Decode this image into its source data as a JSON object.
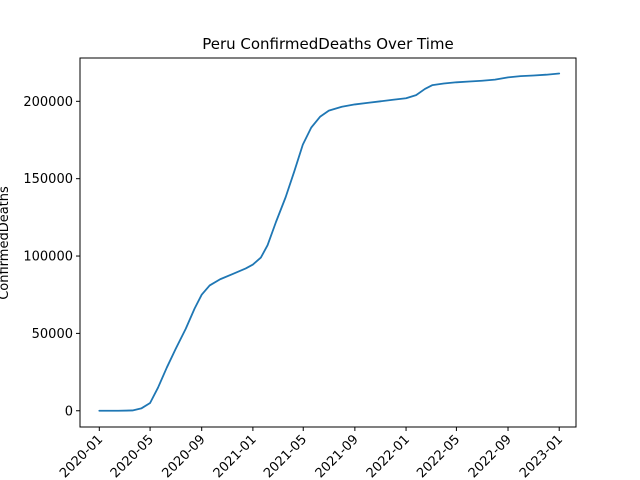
{
  "chart_data": {
    "type": "line",
    "title": "Peru  ConfirmedDeaths Over Time",
    "xlabel": "",
    "ylabel": "ConfirmedDeaths",
    "xlim": [
      "2019-11-16",
      "2023-02-10"
    ],
    "ylim": [
      -10500,
      228000
    ],
    "x_ticks": [
      "2020-01",
      "2020-05",
      "2020-09",
      "2021-01",
      "2021-05",
      "2021-09",
      "2022-01",
      "2022-05",
      "2022-09",
      "2023-01"
    ],
    "y_ticks": [
      "0",
      "50000",
      "100000",
      "150000",
      "200000"
    ],
    "grid": false,
    "series": [
      {
        "color": "#1f77b4",
        "points": [
          [
            "2020-01-01",
            0
          ],
          [
            "2020-02-15",
            0
          ],
          [
            "2020-03-20",
            200
          ],
          [
            "2020-04-10",
            1500
          ],
          [
            "2020-05-01",
            5000
          ],
          [
            "2020-05-20",
            15000
          ],
          [
            "2020-06-10",
            28000
          ],
          [
            "2020-07-01",
            40000
          ],
          [
            "2020-07-25",
            53000
          ],
          [
            "2020-08-15",
            66000
          ],
          [
            "2020-09-01",
            75000
          ],
          [
            "2020-09-20",
            81000
          ],
          [
            "2020-10-15",
            85000
          ],
          [
            "2020-11-15",
            88500
          ],
          [
            "2020-12-15",
            92000
          ],
          [
            "2021-01-01",
            94500
          ],
          [
            "2021-01-20",
            99000
          ],
          [
            "2021-02-05",
            107000
          ],
          [
            "2021-02-25",
            122000
          ],
          [
            "2021-03-20",
            138000
          ],
          [
            "2021-04-10",
            155000
          ],
          [
            "2021-04-30",
            172000
          ],
          [
            "2021-05-20",
            183000
          ],
          [
            "2021-06-10",
            190000
          ],
          [
            "2021-07-01",
            194000
          ],
          [
            "2021-08-01",
            196500
          ],
          [
            "2021-09-01",
            198000
          ],
          [
            "2021-10-01",
            199000
          ],
          [
            "2021-11-01",
            200000
          ],
          [
            "2021-12-01",
            201000
          ],
          [
            "2022-01-01",
            202000
          ],
          [
            "2022-01-25",
            204000
          ],
          [
            "2022-02-15",
            208000
          ],
          [
            "2022-03-05",
            210500
          ],
          [
            "2022-04-01",
            211500
          ],
          [
            "2022-05-01",
            212300
          ],
          [
            "2022-06-01",
            212800
          ],
          [
            "2022-07-01",
            213300
          ],
          [
            "2022-08-01",
            214000
          ],
          [
            "2022-09-01",
            215500
          ],
          [
            "2022-10-01",
            216300
          ],
          [
            "2022-11-01",
            216700
          ],
          [
            "2022-12-01",
            217200
          ],
          [
            "2023-01-01",
            218000
          ]
        ]
      }
    ]
  }
}
